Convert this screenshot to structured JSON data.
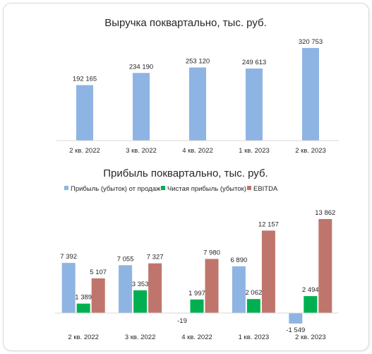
{
  "chart_data": [
    {
      "type": "bar",
      "title": "Выручка поквартально, тыс. руб.",
      "categories": [
        "2 кв. 2022",
        "3 кв. 2022",
        "4 кв. 2022",
        "1 кв. 2023",
        "2 кв. 2023"
      ],
      "values": [
        192165,
        234190,
        253120,
        249613,
        320753
      ],
      "value_labels": [
        "192 165",
        "234 190",
        "253 120",
        "249 613",
        "320 753"
      ],
      "color": "#8eb4e3",
      "ylim": [
        0,
        340000
      ],
      "grid": false,
      "legend": "none"
    },
    {
      "type": "bar",
      "title": "Прибыль поквартально, тыс. руб.",
      "categories": [
        "2 кв. 2022",
        "3 кв. 2022",
        "4 кв. 2022",
        "1 кв. 2023",
        "2 кв. 2023"
      ],
      "series": [
        {
          "name": "Прибыль (убыток) от продаж",
          "color": "#8eb4e3",
          "values": [
            7392,
            7055,
            -19,
            6890,
            -1549
          ],
          "value_labels": [
            "7 392",
            "7 055",
            "-19",
            "6 890",
            "-1 549"
          ]
        },
        {
          "name": "Чистая прибыль (убыток)",
          "color": "#00b050",
          "values": [
            1389,
            3353,
            1997,
            2062,
            2494
          ],
          "value_labels": [
            "1 389",
            "3 353",
            "1 997",
            "2 062",
            "2 494"
          ]
        },
        {
          "name": "EBITDA",
          "color": "#c0756c",
          "values": [
            5107,
            7327,
            7980,
            12157,
            13862
          ],
          "value_labels": [
            "5 107",
            "7 327",
            "7 980",
            "12 157",
            "13 862"
          ]
        }
      ],
      "ylim": [
        -2200,
        14500
      ],
      "grid": false,
      "legend": "top"
    }
  ]
}
